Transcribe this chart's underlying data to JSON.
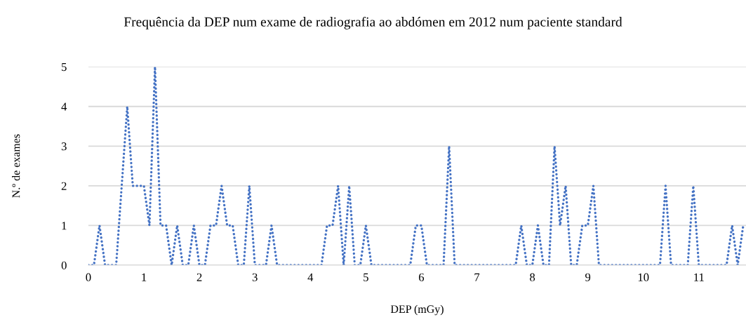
{
  "chart_data": {
    "type": "line",
    "title": "Frequência da DEP num exame de radiografia ao abdómen em 2012 num paciente standard",
    "xlabel": "DEP (mGy)",
    "ylabel": "N.º de exames",
    "series": [
      {
        "color": "#4472c4",
        "x": [
          0,
          0.1,
          0.2,
          0.3,
          0.4,
          0.5,
          0.6,
          0.7,
          0.8,
          0.9,
          1.0,
          1.1,
          1.2,
          1.3,
          1.4,
          1.5,
          1.6,
          1.7,
          1.8,
          1.9,
          2.0,
          2.1,
          2.2,
          2.3,
          2.4,
          2.5,
          2.6,
          2.7,
          2.8,
          2.9,
          3.0,
          3.1,
          3.2,
          3.3,
          3.4,
          3.5,
          3.6,
          3.7,
          3.8,
          3.9,
          4.0,
          4.1,
          4.2,
          4.3,
          4.4,
          4.5,
          4.6,
          4.7,
          4.8,
          4.9,
          5.0,
          5.1,
          5.2,
          5.3,
          5.4,
          5.5,
          5.6,
          5.7,
          5.8,
          5.9,
          6.0,
          6.1,
          6.2,
          6.3,
          6.4,
          6.5,
          6.6,
          6.7,
          6.8,
          6.9,
          7.0,
          7.1,
          7.2,
          7.3,
          7.4,
          7.5,
          7.6,
          7.7,
          7.8,
          7.9,
          8.0,
          8.1,
          8.2,
          8.3,
          8.4,
          8.5,
          8.6,
          8.7,
          8.8,
          8.9,
          9.0,
          9.1,
          9.2,
          9.3,
          9.4,
          9.5,
          9.6,
          9.7,
          9.8,
          9.9,
          10.0,
          10.1,
          10.2,
          10.3,
          10.4,
          10.5,
          10.6,
          10.7,
          10.8,
          10.9,
          11.0,
          11.1,
          11.2,
          11.3,
          11.4,
          11.5,
          11.6,
          11.7,
          11.8
        ],
        "values": [
          0,
          0,
          1,
          0,
          0,
          0,
          2,
          4,
          2,
          2,
          2,
          1,
          5,
          1,
          1,
          0,
          1,
          0,
          0,
          1,
          0,
          0,
          1,
          1,
          2,
          1,
          1,
          0,
          0,
          2,
          0,
          0,
          0,
          1,
          0,
          0,
          0,
          0,
          0,
          0,
          0,
          0,
          0,
          1,
          1,
          2,
          0,
          2,
          0,
          0,
          1,
          0,
          0,
          0,
          0,
          0,
          0,
          0,
          0,
          1,
          1,
          0,
          0,
          0,
          0,
          3,
          0,
          0,
          0,
          0,
          0,
          0,
          0,
          0,
          0,
          0,
          0,
          0,
          1,
          0,
          0,
          1,
          0,
          0,
          3,
          1,
          2,
          0,
          0,
          1,
          1,
          2,
          0,
          0,
          0,
          0,
          0,
          0,
          0,
          0,
          0,
          0,
          0,
          0,
          2,
          0,
          0,
          0,
          0,
          2,
          0,
          0,
          0,
          0,
          0,
          0,
          1,
          0,
          1
        ]
      }
    ],
    "xlim": [
      0,
      11.85
    ],
    "xticks": [
      0,
      1,
      2,
      3,
      4,
      5,
      6,
      7,
      8,
      9,
      10,
      11
    ],
    "ylim": [
      0,
      5
    ],
    "yticks": [
      0,
      1,
      2,
      3,
      4,
      5
    ],
    "grid": "y",
    "marker": "none",
    "line_style": "dotted"
  }
}
